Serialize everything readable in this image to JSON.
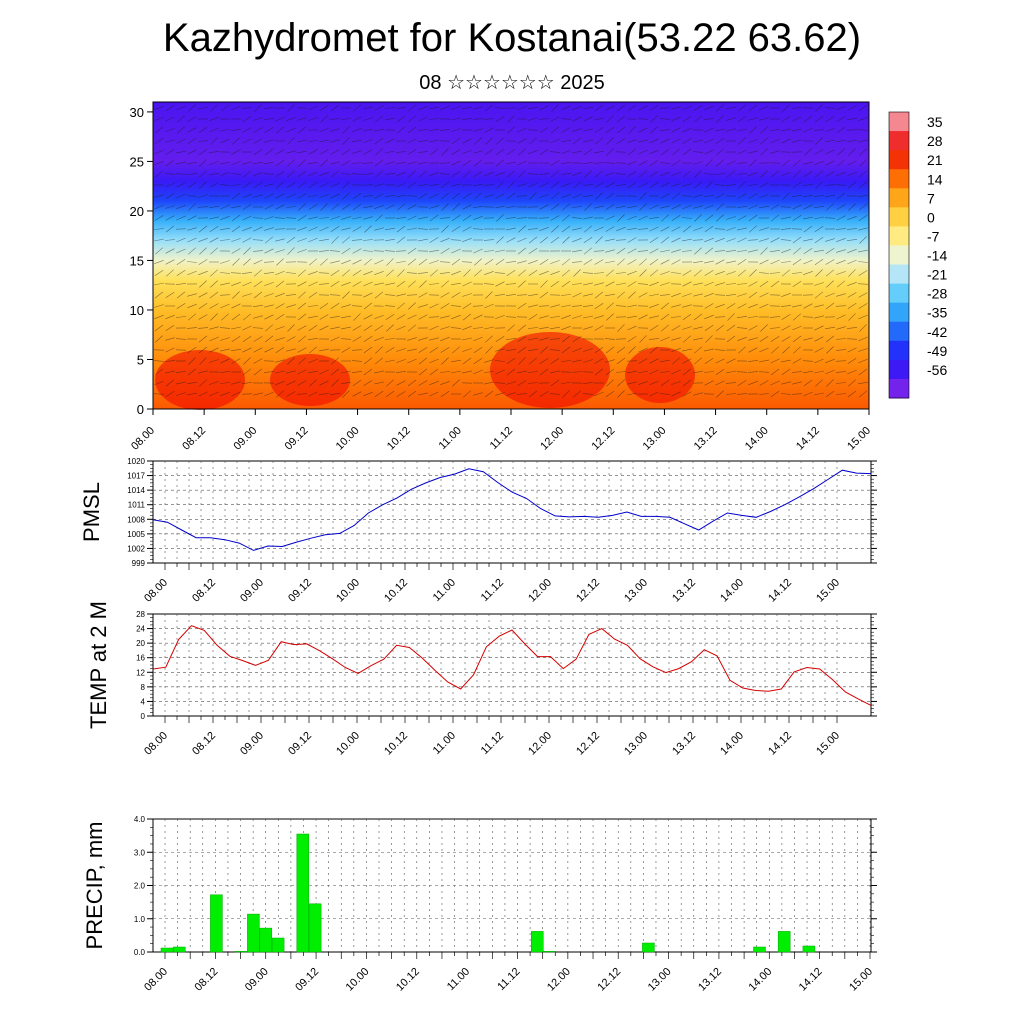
{
  "header": {
    "title": "Kazhydromet for Kostanai(53.22 63.62)",
    "subtitle": "08 ☆☆☆☆☆☆ 2025"
  },
  "colors": {
    "pmsl_line": "#0000cc",
    "temp_line": "#d40000",
    "precip_bar": "#00ee00",
    "precip_bar_edge": "#00aa00"
  },
  "chart_data": [
    {
      "type": "heatmap",
      "name": "cross-section",
      "x_ticks": [
        "08.00",
        "08.12",
        "09.00",
        "09.12",
        "10.00",
        "10.12",
        "11.00",
        "11.12",
        "12.00",
        "12.12",
        "13.00",
        "13.12",
        "14.00",
        "14.12",
        "15.00"
      ],
      "y_ticks": [
        "0",
        "5",
        "10",
        "15",
        "20",
        "25",
        "30"
      ],
      "ylim": [
        0,
        31
      ],
      "colorbar_labels": [
        "35",
        "28",
        "21",
        "14",
        "7",
        "0",
        "-7",
        "-14",
        "-21",
        "-28",
        "-35",
        "-42",
        "-49",
        "-56"
      ],
      "colorbar_range": [
        -63,
        42
      ],
      "temperature_profile": [
        {
          "h": 0,
          "t": 20
        },
        {
          "h": 5,
          "t": 14
        },
        {
          "h": 10,
          "t": 7
        },
        {
          "h": 13,
          "t": 0
        },
        {
          "h": 15,
          "t": -10
        },
        {
          "h": 17,
          "t": -20
        },
        {
          "h": 19,
          "t": -30
        },
        {
          "h": 21,
          "t": -42
        },
        {
          "h": 23,
          "t": -52
        },
        {
          "h": 25,
          "t": -58
        },
        {
          "h": 31,
          "t": -55
        }
      ]
    },
    {
      "type": "line",
      "name": "pmsl",
      "ylabel": "PMSL",
      "y_ticks": [
        "1020",
        "1017",
        "1014",
        "1011",
        "1008",
        "1005",
        "1002",
        "999"
      ],
      "ylim": [
        999,
        1020
      ],
      "x_ticks": [
        "08.00",
        "08.12",
        "09.00",
        "09.12",
        "10.00",
        "10.12",
        "11.00",
        "11.12",
        "12.00",
        "12.12",
        "13.00",
        "13.12",
        "14.00",
        "14.12",
        "15.00"
      ],
      "values": [
        1007.9,
        1007.4,
        1005.8,
        1004.2,
        1004.2,
        1003.8,
        1003.1,
        1001.6,
        1002.5,
        1002.4,
        1003.3,
        1004.1,
        1004.8,
        1005.1,
        1006.7,
        1009.3,
        1011.0,
        1012.4,
        1014.2,
        1015.5,
        1016.6,
        1017.3,
        1018.4,
        1017.8,
        1015.6,
        1013.6,
        1012.3,
        1010.2,
        1008.7,
        1008.5,
        1008.6,
        1008.4,
        1008.8,
        1009.5,
        1008.6,
        1008.6,
        1008.4,
        1007.1,
        1005.8,
        1007.6,
        1009.3,
        1008.8,
        1008.4,
        1009.6,
        1011.0,
        1012.6,
        1014.3,
        1016.2,
        1018.1,
        1017.5,
        1017.4
      ],
      "x_range": [
        0,
        50
      ]
    },
    {
      "type": "line",
      "name": "temp",
      "ylabel": "TEMP at 2 M",
      "y_ticks": [
        "28",
        "24",
        "20",
        "16",
        "12",
        "8",
        "4",
        "0"
      ],
      "ylim": [
        0,
        28
      ],
      "x_ticks": [
        "08.00",
        "08.12",
        "09.00",
        "09.12",
        "10.00",
        "10.12",
        "11.00",
        "11.12",
        "12.00",
        "12.12",
        "13.00",
        "13.12",
        "14.00",
        "14.12",
        "15.00"
      ],
      "values": [
        12.9,
        13.4,
        21.0,
        24.8,
        23.5,
        19.4,
        16.4,
        15.2,
        13.9,
        15.3,
        20.4,
        19.6,
        19.8,
        17.9,
        15.7,
        13.3,
        11.7,
        13.8,
        15.6,
        19.4,
        18.8,
        15.9,
        12.5,
        9.3,
        7.4,
        11.3,
        19.0,
        21.9,
        23.6,
        19.8,
        16.3,
        16.3,
        13.0,
        15.6,
        22.4,
        24.0,
        21.1,
        19.4,
        15.7,
        13.5,
        11.9,
        13.0,
        14.9,
        18.2,
        16.5,
        9.8,
        7.7,
        7.0,
        6.8,
        7.4,
        12.1,
        13.3,
        12.9,
        10.0,
        6.6,
        4.7,
        2.9
      ],
      "x_range": [
        0,
        56
      ]
    },
    {
      "type": "bar",
      "name": "precip",
      "ylabel": "PRECIP, mm",
      "y_ticks": [
        "4.0",
        "3.0",
        "2.0",
        "1.0",
        "0.0"
      ],
      "ylim": [
        0,
        4
      ],
      "x_ticks": [
        "08.00",
        "08.12",
        "09.00",
        "09.12",
        "10.00",
        "10.12",
        "11.00",
        "11.12",
        "12.00",
        "12.12",
        "13.00",
        "13.12",
        "14.00",
        "14.12",
        "15.00"
      ],
      "values": [
        0.12,
        0.15,
        0.0,
        0.0,
        1.72,
        0.0,
        0.02,
        1.14,
        0.72,
        0.42,
        0.0,
        3.55,
        1.45,
        0.0,
        0.0,
        0.0,
        0.0,
        0.0,
        0.0,
        0.0,
        0.0,
        0.0,
        0.0,
        0.0,
        0.0,
        0.0,
        0.0,
        0.0,
        0.0,
        0.0,
        0.62,
        0.02,
        0.0,
        0.0,
        0.0,
        0.0,
        0.0,
        0.0,
        0.0,
        0.27,
        0.0,
        0.0,
        0.0,
        0.0,
        0.0,
        0.0,
        0.0,
        0.0,
        0.15,
        0.0,
        0.62,
        0.0,
        0.18,
        0.0,
        0.0,
        0.0
      ],
      "x_range": [
        0,
        56
      ]
    }
  ]
}
